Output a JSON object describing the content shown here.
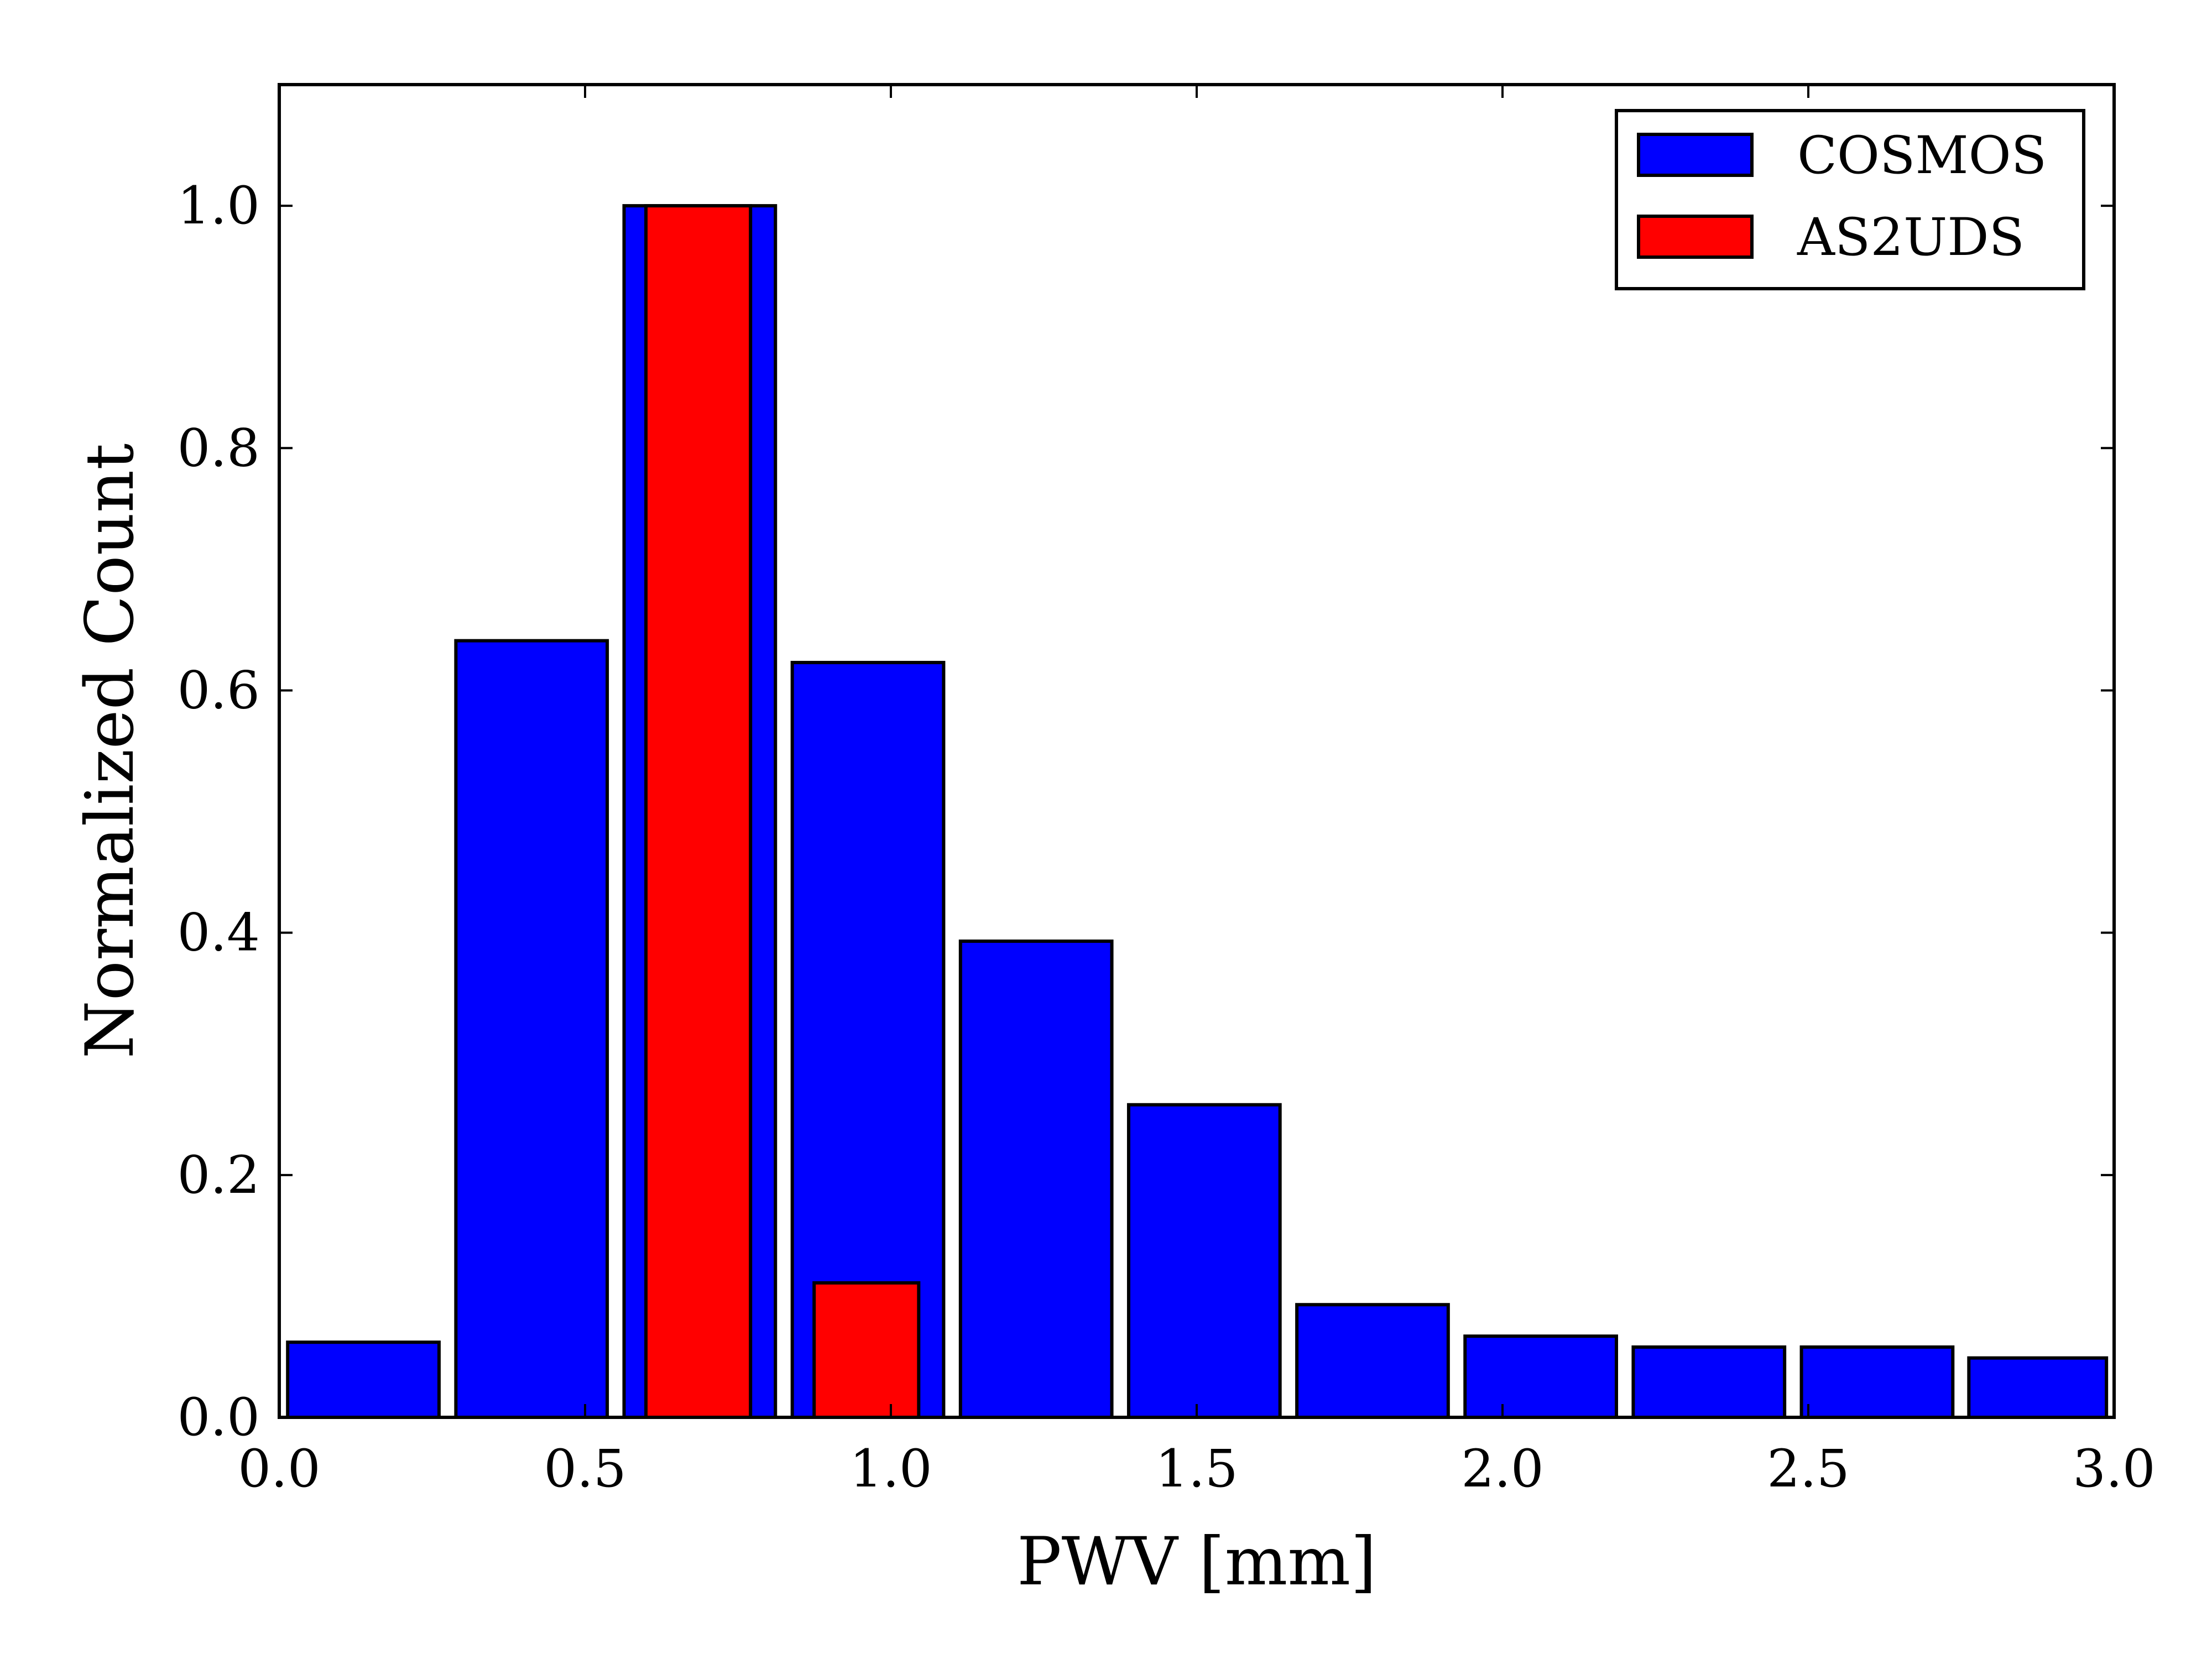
{
  "chart_data": {
    "type": "bar",
    "title": "",
    "xlabel": "PWV [mm]",
    "ylabel": "Normalized Count",
    "xlim": [
      0.0,
      3.0
    ],
    "ylim": [
      0.0,
      1.1
    ],
    "xticks": [
      "0.0",
      "0.5",
      "1.0",
      "1.5",
      "2.0",
      "2.5",
      "3.0"
    ],
    "xtick_values": [
      0.0,
      0.5,
      1.0,
      1.5,
      2.0,
      2.5,
      3.0
    ],
    "yticks": [
      "0.0",
      "0.2",
      "0.4",
      "0.6",
      "0.8",
      "1.0"
    ],
    "ytick_values": [
      0.0,
      0.2,
      0.4,
      0.6,
      0.8,
      1.0
    ],
    "grid": false,
    "legend_position": "top-right",
    "series": [
      {
        "name": "COSMOS",
        "color": "#0000ff",
        "bin_edges": [
          0.0,
          0.275,
          0.55,
          0.825,
          1.1,
          1.375,
          1.65,
          1.925,
          2.2,
          2.475,
          2.75,
          3.0
        ],
        "values": [
          0.062,
          0.641,
          1.0,
          0.623,
          0.393,
          0.258,
          0.093,
          0.067,
          0.058,
          0.058,
          0.049
        ]
      },
      {
        "name": "AS2UDS",
        "color": "#ff0000",
        "bin_edges": [
          0.59,
          0.78,
          0.865,
          1.055
        ],
        "values": [
          1.0,
          0.0,
          0.111
        ]
      }
    ]
  }
}
